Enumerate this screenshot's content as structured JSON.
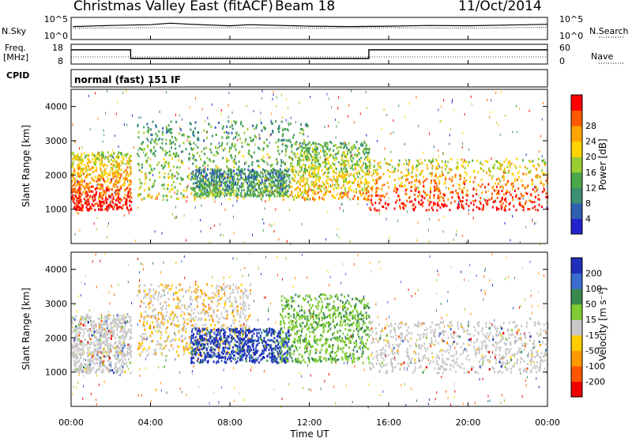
{
  "header": {
    "station": "Christmas Valley East (fitACF)",
    "beam": "Beam 18",
    "date": "11/Oct/2014"
  },
  "noise_panel": {
    "left_label": "N.Sky",
    "right_label": "N.Search",
    "left_ticks": [
      "10^5",
      "10^0"
    ],
    "right_ticks": [
      "10^5",
      "10^0"
    ]
  },
  "freq_panel": {
    "left_label_1": "Freq.",
    "left_label_2": "[MHz]",
    "right_label": "Nave",
    "left_ticks": [
      "18",
      "8"
    ],
    "right_ticks": [
      "60",
      "0"
    ]
  },
  "cpid": {
    "label": "CPID",
    "mode": "normal (fast) 151 IF"
  },
  "power_panel": {
    "ylabel": "Slant Range [km]",
    "yticks": [
      "1000",
      "2000",
      "3000",
      "4000"
    ],
    "colorbar_label": "Power [dB]",
    "colorbar_ticks": [
      "4",
      "8",
      "12",
      "16",
      "20",
      "24",
      "28"
    ]
  },
  "velocity_panel": {
    "ylabel": "Slant Range [km]",
    "yticks": [
      "1000",
      "2000",
      "3000",
      "4000"
    ],
    "colorbar_label": "Velocity [m s⁻¹]",
    "colorbar_ticks": [
      "200",
      "100",
      "50",
      "15",
      "-15",
      "-50",
      "-100",
      "-200"
    ]
  },
  "xaxis": {
    "label": "Time UT",
    "ticks": [
      "00:00",
      "04:00",
      "08:00",
      "12:00",
      "16:00",
      "20:00",
      "00:00"
    ]
  },
  "colors": {
    "power_scale": [
      "#2222cc",
      "#2f5fb0",
      "#3c8f70",
      "#4aa84a",
      "#9acd32",
      "#ffd400",
      "#ffa500",
      "#ff5a00",
      "#ff0000"
    ],
    "velocity_scale": [
      "#1f2fb8",
      "#3b6ccf",
      "#3a8a50",
      "#7fcc33",
      "#c8c8c8",
      "#ffcc00",
      "#ff9900",
      "#ff5500",
      "#ee0000"
    ]
  },
  "chart_data": [
    {
      "type": "line",
      "title": "",
      "xlabel": "",
      "ylabel": "N.Sky",
      "xlim": [
        0,
        24
      ],
      "y_scale": "log",
      "ylim_ticks": [
        "10^0",
        "10^5"
      ],
      "series": [
        {
          "name": "N.Sky",
          "x": [
            0.1,
            2,
            4,
            5,
            6,
            8,
            9,
            12,
            14,
            16,
            18,
            20,
            22,
            24
          ],
          "values": [
            3,
            3.3,
            3.5,
            3.9,
            3.6,
            3.2,
            3.5,
            3.1,
            3.0,
            3.1,
            3.3,
            3.2,
            3.4,
            3.6
          ]
        },
        {
          "name": "N.Search",
          "x": [
            0.1,
            4,
            8,
            12,
            16,
            20,
            24
          ],
          "values": [
            2.6,
            2.7,
            2.7,
            2.6,
            2.7,
            2.6,
            2.8
          ]
        }
      ]
    },
    {
      "type": "line",
      "title": "",
      "xlabel": "",
      "ylabel": "Freq. [MHz]",
      "xlim": [
        0,
        24
      ],
      "ylim": [
        8,
        18
      ],
      "right_axis": {
        "label": "Nave",
        "ylim": [
          0,
          60
        ]
      },
      "series": [
        {
          "name": "Freq.",
          "x": [
            0,
            3,
            3,
            15,
            15,
            24
          ],
          "values": [
            16,
            16,
            10.5,
            10.5,
            16,
            16
          ]
        },
        {
          "name": "Nave",
          "x": [
            0,
            24
          ],
          "values": [
            21,
            21
          ]
        }
      ]
    },
    {
      "type": "heatmap",
      "title": "",
      "xlabel": "",
      "ylabel": "Slant Range [km]",
      "xlim": [
        0,
        24
      ],
      "ylim": [
        0,
        4500
      ],
      "colorbar": {
        "label": "Power [dB]",
        "ticks": [
          4,
          8,
          12,
          16,
          20,
          24,
          28
        ]
      },
      "regions": [
        {
          "t": [
            0,
            3
          ],
          "range": [
            1000,
            2700
          ],
          "value": 26
        },
        {
          "t": [
            3.3,
            12
          ],
          "range": [
            1300,
            3600
          ],
          "value": 14
        },
        {
          "t": [
            6,
            11
          ],
          "range": [
            1400,
            2200
          ],
          "value": 10
        },
        {
          "t": [
            11,
            15
          ],
          "range": [
            1300,
            3000
          ],
          "value": 18
        },
        {
          "t": [
            15,
            24
          ],
          "range": [
            1000,
            2500
          ],
          "value": 26
        }
      ]
    },
    {
      "type": "heatmap",
      "title": "",
      "xlabel": "Time UT",
      "ylabel": "Slant Range [km]",
      "xlim": [
        0,
        24
      ],
      "ylim": [
        0,
        4500
      ],
      "colorbar": {
        "label": "Velocity [m s⁻¹]",
        "ticks": [
          200,
          100,
          50,
          15,
          -15,
          -50,
          -100,
          -200
        ]
      },
      "regions": [
        {
          "t": [
            0,
            3
          ],
          "range": [
            1000,
            2700
          ],
          "value": 0
        },
        {
          "t": [
            3.3,
            9
          ],
          "range": [
            1500,
            3600
          ],
          "value": -20
        },
        {
          "t": [
            6,
            11
          ],
          "range": [
            1300,
            2300
          ],
          "value": 150
        },
        {
          "t": [
            10.5,
            15
          ],
          "range": [
            1300,
            3300
          ],
          "value": 40
        },
        {
          "t": [
            15,
            24
          ],
          "range": [
            1000,
            2500
          ],
          "value": 0
        }
      ]
    }
  ]
}
